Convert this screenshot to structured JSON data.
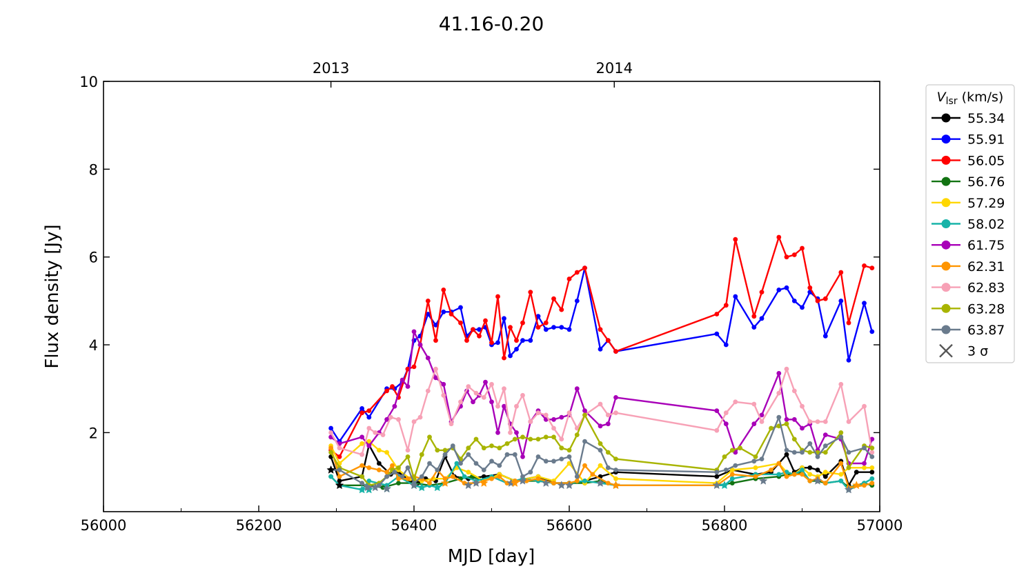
{
  "chart_data": {
    "type": "line",
    "title": "41.16-0.20",
    "xlabel": "MJD [day]",
    "ylabel": "Flux density [Jy]",
    "xlim": [
      56000,
      57000
    ],
    "ylim": [
      0.2,
      10
    ],
    "x_ticks": [
      "56000",
      "56200",
      "56400",
      "56600",
      "56800",
      "57000"
    ],
    "y_ticks": [
      "2",
      "4",
      "6",
      "8",
      "10"
    ],
    "top_axis": {
      "ticks": [
        {
          "label": "2013",
          "x": 56293
        },
        {
          "label": "2014",
          "x": 56658
        }
      ]
    },
    "grid": false,
    "legend": {
      "placement": "outside-right",
      "title_main": "V",
      "title_sub": "lsr",
      "title_unit": " (km/s)",
      "threshold_label": "3 σ",
      "threshold_color": "#555555"
    },
    "series": [
      {
        "name": "55.34",
        "color": "#000000",
        "x": [
          56293,
          56304,
          56333,
          56342,
          56355,
          56370,
          56380,
          56395,
          56405,
          56415,
          56428,
          56440,
          56452,
          56470,
          56490,
          56510,
          56530,
          56560,
          56580,
          56600,
          56620,
          56640,
          56660,
          56790,
          56810,
          56840,
          56860,
          56880,
          56890,
          56900,
          56910,
          56920,
          56930,
          56950,
          56960,
          56970,
          56990
        ],
        "values": [
          1.45,
          0.9,
          1.0,
          1.72,
          1.3,
          1.05,
          1.1,
          0.9,
          0.85,
          0.95,
          0.9,
          1.45,
          1.0,
          0.95,
          1.0,
          1.05,
          0.9,
          1.0,
          0.85,
          0.85,
          0.9,
          1.0,
          1.1,
          1.0,
          1.15,
          1.05,
          1.1,
          1.5,
          1.1,
          1.2,
          1.2,
          1.15,
          1.0,
          1.35,
          0.8,
          1.1,
          1.1
        ]
      },
      {
        "name": "55.91",
        "color": "#0000ff",
        "x": [
          56293,
          56304,
          56333,
          56342,
          56365,
          56375,
          56385,
          56392,
          56400,
          56408,
          56418,
          56428,
          56438,
          56448,
          56460,
          56468,
          56476,
          56484,
          56492,
          56500,
          56508,
          56516,
          56524,
          56532,
          56540,
          56550,
          56560,
          56570,
          56580,
          56590,
          56600,
          56610,
          56620,
          56640,
          56650,
          56660,
          56790,
          56802,
          56814,
          56838,
          56848,
          56870,
          56880,
          56890,
          56900,
          56910,
          56920,
          56930,
          56950,
          56960,
          56980,
          56990
        ],
        "values": [
          2.1,
          1.8,
          2.55,
          2.35,
          3.0,
          3.0,
          3.15,
          3.45,
          4.1,
          4.2,
          4.7,
          4.45,
          4.75,
          4.75,
          4.85,
          4.2,
          4.35,
          4.35,
          4.4,
          4.0,
          4.05,
          4.6,
          3.75,
          3.9,
          4.1,
          4.1,
          4.65,
          4.35,
          4.4,
          4.4,
          4.35,
          5.0,
          5.75,
          3.9,
          4.1,
          3.85,
          4.25,
          4.0,
          5.1,
          4.4,
          4.6,
          5.25,
          5.3,
          5.0,
          4.85,
          5.2,
          5.05,
          4.2,
          5.0,
          3.65,
          4.95,
          4.3
        ]
      },
      {
        "name": "56.05",
        "color": "#ff0000",
        "x": [
          56293,
          56304,
          56333,
          56342,
          56365,
          56372,
          56380,
          56392,
          56400,
          56408,
          56418,
          56428,
          56438,
          56448,
          56460,
          56468,
          56476,
          56484,
          56492,
          56500,
          56508,
          56516,
          56524,
          56532,
          56540,
          56550,
          56560,
          56570,
          56580,
          56590,
          56600,
          56610,
          56620,
          56640,
          56650,
          56660,
          56790,
          56802,
          56814,
          56838,
          56848,
          56870,
          56880,
          56890,
          56900,
          56910,
          56920,
          56930,
          56950,
          56960,
          56980,
          56990
        ],
        "values": [
          1.6,
          1.45,
          2.45,
          2.5,
          2.95,
          3.05,
          2.8,
          3.45,
          3.5,
          4.0,
          5.0,
          4.1,
          5.25,
          4.7,
          4.5,
          4.1,
          4.35,
          4.2,
          4.55,
          4.05,
          5.1,
          3.7,
          4.4,
          4.1,
          4.5,
          5.2,
          4.4,
          4.5,
          5.05,
          4.8,
          5.5,
          5.65,
          5.75,
          4.35,
          4.1,
          3.85,
          4.7,
          4.9,
          6.4,
          4.65,
          5.2,
          6.45,
          6.0,
          6.05,
          6.2,
          5.3,
          5.0,
          5.05,
          5.65,
          4.5,
          5.8,
          5.75
        ]
      },
      {
        "name": "56.76",
        "color": "#127312",
        "x": [
          56293,
          56304,
          56340,
          56360,
          56380,
          56400,
          56420,
          56440,
          56460,
          56475,
          56490,
          56510,
          56530,
          56560,
          56580,
          56600,
          56620,
          56640,
          56660,
          56790,
          56810,
          56840,
          56870,
          56880,
          56890,
          56900,
          56910,
          56920,
          56930,
          56950,
          56960,
          56980,
          56990
        ],
        "values": [
          1.0,
          0.8,
          0.8,
          0.75,
          0.85,
          0.85,
          0.8,
          0.85,
          0.95,
          1.0,
          0.9,
          1.05,
          0.9,
          0.9,
          0.85,
          0.85,
          0.85,
          0.9,
          0.8,
          0.8,
          0.85,
          0.95,
          1.0,
          1.05,
          1.05,
          1.1,
          0.9,
          0.9,
          0.85,
          0.9,
          0.75,
          0.85,
          0.8
        ]
      },
      {
        "name": "57.29",
        "color": "#ffd700",
        "x": [
          56293,
          56304,
          56333,
          56342,
          56355,
          56365,
          56380,
          56395,
          56410,
          56425,
          56440,
          56455,
          56470,
          56490,
          56510,
          56530,
          56560,
          56580,
          56600,
          56620,
          56640,
          56660,
          56790,
          56810,
          56840,
          56870,
          56880,
          56890,
          56900,
          56910,
          56920,
          56930,
          56950,
          56960,
          56980,
          56990
        ],
        "values": [
          1.7,
          1.3,
          1.75,
          1.8,
          1.6,
          1.55,
          1.15,
          0.95,
          0.9,
          0.95,
          0.95,
          1.2,
          1.1,
          0.9,
          1.05,
          0.9,
          1.0,
          0.9,
          1.3,
          0.85,
          1.25,
          0.95,
          0.85,
          1.15,
          1.2,
          1.3,
          1.1,
          1.05,
          1.2,
          1.05,
          1.0,
          1.1,
          1.05,
          1.2,
          1.2,
          1.2
        ]
      },
      {
        "name": "58.02",
        "color": "#17b3a8",
        "x": [
          56293,
          56304,
          56333,
          56342,
          56365,
          56380,
          56400,
          56410,
          56420,
          56430,
          56440,
          56455,
          56465,
          56480,
          56500,
          56520,
          56540,
          56560,
          56580,
          56600,
          56620,
          56640,
          56660,
          56790,
          56800,
          56810,
          56840,
          56870,
          56880,
          56890,
          56900,
          56910,
          56920,
          56930,
          56950,
          56960,
          56980,
          56990
        ],
        "values": [
          1.0,
          0.8,
          0.7,
          0.9,
          0.8,
          1.0,
          0.8,
          0.75,
          0.8,
          0.75,
          0.85,
          1.3,
          1.0,
          0.9,
          1.0,
          0.85,
          0.95,
          0.9,
          0.85,
          0.85,
          0.9,
          0.85,
          0.8,
          0.8,
          0.8,
          0.95,
          1.05,
          1.05,
          1.1,
          1.05,
          1.15,
          0.9,
          0.95,
          0.85,
          0.9,
          0.7,
          0.85,
          0.95
        ]
      },
      {
        "name": "61.75",
        "color": "#a800b8",
        "x": [
          56293,
          56304,
          56333,
          56342,
          56355,
          56365,
          56375,
          56385,
          56392,
          56400,
          56408,
          56418,
          56428,
          56438,
          56448,
          56460,
          56468,
          56476,
          56484,
          56492,
          56500,
          56508,
          56516,
          56524,
          56532,
          56540,
          56550,
          56560,
          56570,
          56580,
          56590,
          56600,
          56610,
          56620,
          56640,
          56650,
          56660,
          56790,
          56802,
          56814,
          56838,
          56848,
          56870,
          56880,
          56890,
          56900,
          56910,
          56920,
          56930,
          56950,
          56960,
          56980,
          56990
        ],
        "values": [
          1.9,
          1.75,
          1.9,
          1.7,
          2.0,
          2.3,
          2.6,
          3.2,
          3.05,
          4.3,
          4.0,
          3.7,
          3.25,
          3.1,
          2.25,
          2.6,
          2.95,
          2.7,
          2.85,
          3.15,
          2.7,
          2.0,
          2.6,
          2.2,
          2.0,
          1.45,
          2.25,
          2.5,
          2.3,
          2.3,
          2.35,
          2.4,
          3.0,
          2.5,
          2.15,
          2.2,
          2.8,
          2.5,
          2.2,
          1.55,
          2.2,
          2.4,
          3.35,
          2.3,
          2.3,
          2.1,
          2.2,
          1.6,
          1.95,
          1.85,
          1.3,
          1.3,
          1.85
        ]
      },
      {
        "name": "62.31",
        "color": "#ff9500",
        "x": [
          56293,
          56304,
          56333,
          56342,
          56355,
          56365,
          56372,
          56380,
          56392,
          56400,
          56410,
          56420,
          56430,
          56440,
          56450,
          56465,
          56480,
          56500,
          56510,
          56520,
          56530,
          56545,
          56560,
          56580,
          56600,
          56610,
          56620,
          56630,
          56650,
          56660,
          56790,
          56810,
          56840,
          56860,
          56870,
          56880,
          56890,
          56900,
          56910,
          56920,
          56930,
          56950,
          56960,
          56980,
          56990
        ],
        "values": [
          1.65,
          1.0,
          1.25,
          1.2,
          1.15,
          1.1,
          1.25,
          0.95,
          0.95,
          1.0,
          0.95,
          0.85,
          1.15,
          0.95,
          1.0,
          0.85,
          0.85,
          0.95,
          1.0,
          0.85,
          0.9,
          0.9,
          0.95,
          0.85,
          0.85,
          0.9,
          1.25,
          1.05,
          0.85,
          0.8,
          0.8,
          1.05,
          1.0,
          1.15,
          1.3,
          1.0,
          1.05,
          1.05,
          0.9,
          0.95,
          0.85,
          1.3,
          0.75,
          0.8,
          0.85
        ]
      },
      {
        "name": "62.83",
        "color": "#f7a1b6",
        "x": [
          56293,
          56304,
          56333,
          56342,
          56350,
          56360,
          56370,
          56380,
          56392,
          56400,
          56408,
          56418,
          56428,
          56438,
          56448,
          56460,
          56470,
          56480,
          56490,
          56500,
          56508,
          56516,
          56524,
          56532,
          56540,
          56550,
          56560,
          56570,
          56580,
          56590,
          56600,
          56610,
          56620,
          56640,
          56650,
          56660,
          56790,
          56802,
          56814,
          56838,
          56848,
          56870,
          56880,
          56890,
          56900,
          56910,
          56920,
          56930,
          56950,
          56960,
          56980,
          56990
        ],
        "values": [
          2.0,
          1.65,
          1.5,
          2.1,
          2.0,
          1.95,
          2.35,
          2.3,
          1.6,
          2.25,
          2.35,
          2.95,
          3.45,
          2.85,
          2.2,
          2.7,
          3.05,
          2.9,
          2.8,
          3.1,
          2.6,
          3.0,
          2.0,
          2.6,
          2.85,
          2.25,
          2.45,
          2.4,
          2.1,
          1.85,
          2.45,
          2.1,
          2.4,
          2.65,
          2.4,
          2.45,
          2.05,
          2.45,
          2.7,
          2.65,
          2.25,
          2.9,
          3.45,
          2.95,
          2.6,
          2.25,
          2.25,
          2.25,
          3.1,
          2.25,
          2.6,
          1.55
        ]
      },
      {
        "name": "63.28",
        "color": "#a8b400",
        "x": [
          56293,
          56304,
          56333,
          56342,
          56355,
          56365,
          56372,
          56380,
          56392,
          56400,
          56410,
          56420,
          56430,
          56440,
          56450,
          56460,
          56470,
          56480,
          56490,
          56500,
          56510,
          56520,
          56530,
          56540,
          56550,
          56560,
          56570,
          56580,
          56590,
          56600,
          56610,
          56620,
          56640,
          56650,
          56660,
          56790,
          56800,
          56810,
          56820,
          56840,
          56860,
          56870,
          56880,
          56890,
          56900,
          56910,
          56920,
          56930,
          56950,
          56960,
          56980,
          56990
        ],
        "values": [
          1.55,
          1.2,
          1.0,
          0.8,
          0.85,
          1.0,
          1.15,
          1.2,
          1.45,
          0.95,
          1.5,
          1.9,
          1.6,
          1.6,
          1.65,
          1.4,
          1.65,
          1.85,
          1.65,
          1.7,
          1.65,
          1.75,
          1.85,
          1.9,
          1.85,
          1.85,
          1.9,
          1.9,
          1.65,
          1.6,
          1.95,
          2.4,
          1.75,
          1.55,
          1.4,
          1.15,
          1.45,
          1.6,
          1.65,
          1.45,
          2.1,
          2.15,
          2.2,
          1.85,
          1.6,
          1.55,
          1.55,
          1.55,
          2.0,
          1.2,
          1.7,
          1.65
        ]
      },
      {
        "name": "63.87",
        "color": "#6a7b8d",
        "x": [
          56293,
          56304,
          56333,
          56342,
          56355,
          56365,
          56375,
          56385,
          56392,
          56400,
          56410,
          56420,
          56430,
          56440,
          56450,
          56460,
          56470,
          56480,
          56490,
          56500,
          56510,
          56520,
          56530,
          56540,
          56550,
          56560,
          56570,
          56580,
          56590,
          56600,
          56610,
          56620,
          56640,
          56650,
          56660,
          56790,
          56802,
          56814,
          56838,
          56848,
          56870,
          56880,
          56890,
          56900,
          56910,
          56920,
          56930,
          56950,
          56960,
          56980,
          56990
        ],
        "values": [
          1.15,
          1.15,
          0.85,
          0.75,
          0.8,
          1.0,
          1.1,
          1.0,
          1.2,
          0.85,
          1.0,
          1.3,
          1.15,
          1.5,
          1.7,
          1.3,
          1.5,
          1.3,
          1.15,
          1.35,
          1.25,
          1.5,
          1.5,
          1.0,
          1.1,
          1.45,
          1.35,
          1.35,
          1.4,
          1.45,
          1.0,
          1.8,
          1.6,
          1.2,
          1.15,
          1.1,
          1.15,
          1.25,
          1.35,
          1.4,
          2.35,
          1.6,
          1.55,
          1.55,
          1.75,
          1.45,
          1.7,
          1.9,
          1.55,
          1.65,
          1.45
        ]
      }
    ],
    "threshold_points": [
      {
        "color": "#000000",
        "x": [
          56293,
          56304
        ],
        "values": [
          1.15,
          0.8
        ]
      },
      {
        "color": "#17b3a8",
        "x": [
          56333,
          56342,
          56365,
          56400,
          56410,
          56430,
          56800
        ],
        "values": [
          0.7,
          0.7,
          0.72,
          0.8,
          0.75,
          0.75,
          0.8
        ]
      },
      {
        "color": "#6a7b8d",
        "x": [
          56340,
          56350,
          56365,
          56400,
          56470,
          56480,
          56525,
          56540,
          56570,
          56590,
          56600,
          56640,
          56660,
          56790,
          56850,
          56920,
          56960
        ],
        "values": [
          0.75,
          0.75,
          0.72,
          0.8,
          0.8,
          0.85,
          0.85,
          0.9,
          0.85,
          0.8,
          0.8,
          0.85,
          0.8,
          0.8,
          0.9,
          0.9,
          0.7
        ]
      },
      {
        "color": "#ff9500",
        "x": [
          56440,
          56490,
          56530,
          56660,
          56970
        ],
        "values": [
          0.85,
          0.85,
          0.85,
          0.8,
          0.8
        ]
      }
    ]
  }
}
